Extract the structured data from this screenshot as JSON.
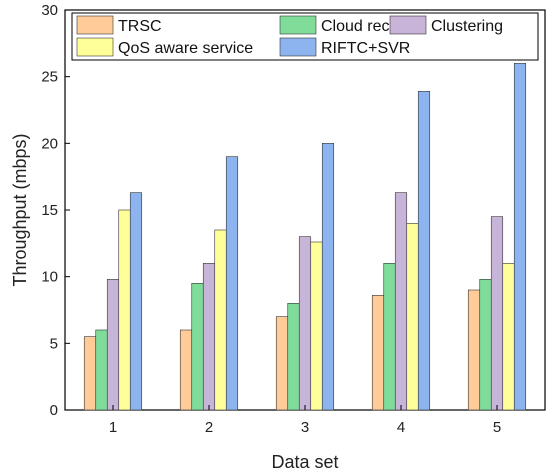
{
  "chart_data": {
    "type": "bar",
    "xlabel": "Data set",
    "ylabel": "Throughput (mbps)",
    "ylim": [
      0,
      30
    ],
    "yticks": [
      0,
      5,
      10,
      15,
      20,
      25,
      30
    ],
    "categories": [
      "1",
      "2",
      "3",
      "4",
      "5"
    ],
    "legend_placement": "top",
    "grid": false,
    "series": [
      {
        "name": "TRSC",
        "color": "#FFCC99",
        "values": [
          5.5,
          6.0,
          7.0,
          8.6,
          9.0
        ]
      },
      {
        "name": "Cloud rec",
        "color": "#80DD99",
        "values": [
          6.0,
          9.5,
          8.0,
          11.0,
          9.8
        ]
      },
      {
        "name": "Clustering",
        "color": "#C8B4D8",
        "values": [
          9.8,
          11.0,
          13.0,
          16.3,
          14.5
        ]
      },
      {
        "name": "QoS aware service",
        "color": "#FFFF99",
        "values": [
          15.0,
          13.5,
          12.6,
          14.0,
          11.0
        ]
      },
      {
        "name": "RIFTC+SVR",
        "color": "#8DB4EE",
        "values": [
          16.3,
          19.0,
          20.0,
          23.9,
          26.0
        ]
      }
    ]
  }
}
